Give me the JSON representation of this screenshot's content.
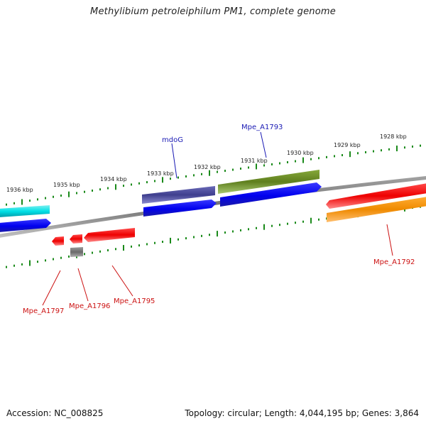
{
  "title": "Methylibium petroleiphilum PM1, complete genome",
  "footer": {
    "accession": "Accession: NC_008825",
    "summary": "Topology: circular; Length: 4,044,195 bp; Genes: 3,864"
  },
  "colors": {
    "tick_mark": "#1a8a1a",
    "backbone": "#808080",
    "forward_label": "#1a1ab4",
    "reverse_label": "#cc1111"
  },
  "scale_labels": [
    "1936 kbp",
    "1935 kbp",
    "1934 kbp",
    "1933 kbp",
    "1932 kbp",
    "1931 kbp",
    "1930 kbp",
    "1929 kbp",
    "1928 kbp"
  ],
  "gene_labels": {
    "forward": [
      "mdoG",
      "Mpe_A1793"
    ],
    "reverse": [
      "Mpe_A1797",
      "Mpe_A1796",
      "Mpe_A1795",
      "Mpe_A1792"
    ]
  },
  "feature_colors": [
    "cyan",
    "blue",
    "slate-purple",
    "olive-green",
    "red",
    "orange",
    "gray"
  ]
}
